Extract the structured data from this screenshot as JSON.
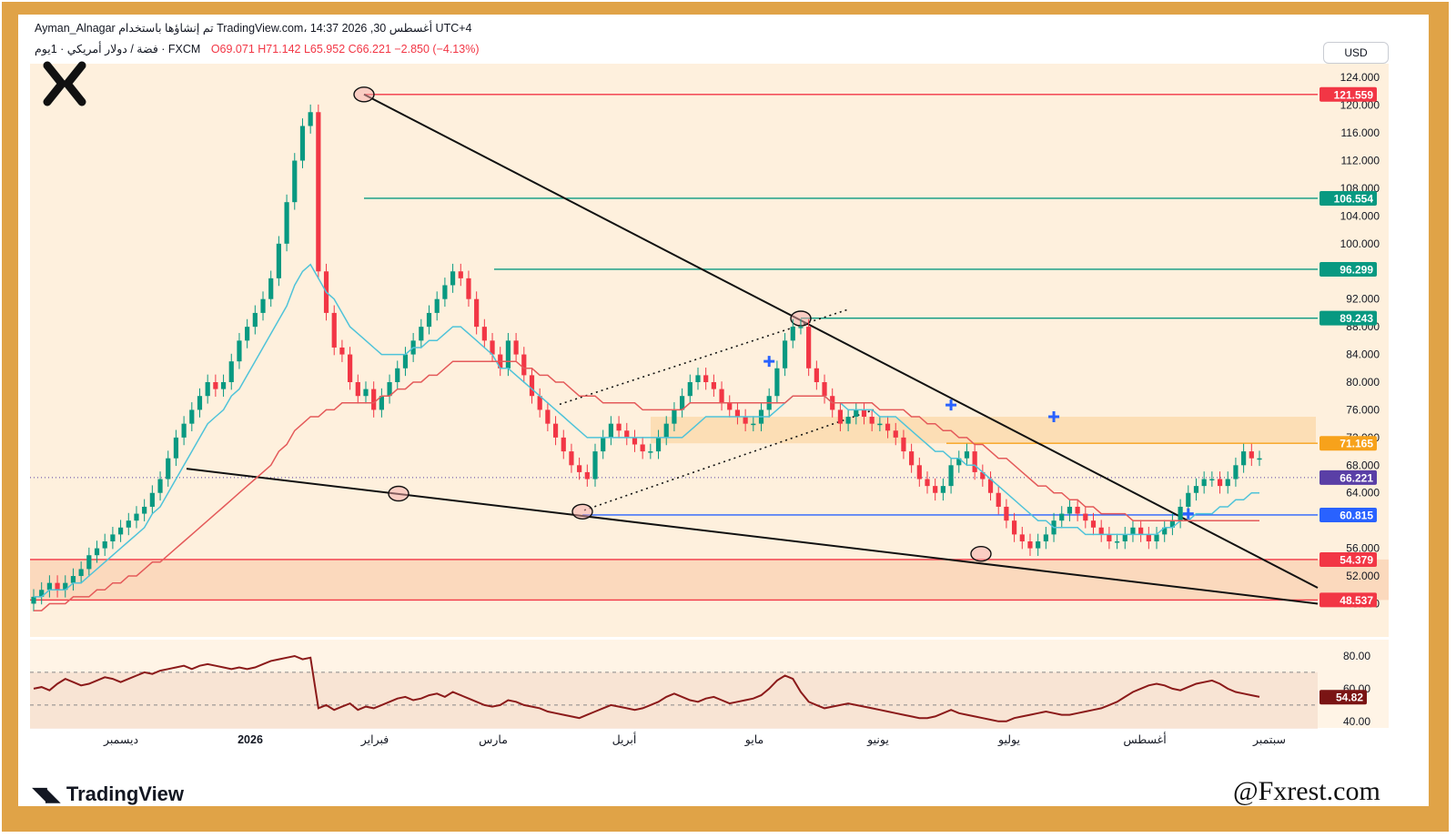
{
  "header": {
    "line1": "Ayman_Alnagar تم إنشاؤها باستخدام TradingView.com، 14:37 2026 ,30 أغسطس UTC+4",
    "symbol": "فضة / دولار أمريكي · 1يوم · FXCM",
    "ohlc": "O69.071  H71.142  L65.952  C66.221  −2.850 (−4.13%)"
  },
  "currency_button": "USD",
  "footer": {
    "brand": "TradingView",
    "watermark": "@Fxrest.com"
  },
  "colors": {
    "background_band": "#FDE7C7",
    "bull": "#089981",
    "bear": "#F23645",
    "ema_fast": "#4FC3D9",
    "ema_slow": "#E45A5A",
    "rsi": "#8B1A1A",
    "border": "#E0A347"
  },
  "chart_data": [
    {
      "type": "line",
      "title": "",
      "xlabel": "",
      "ylabel": "",
      "ylim": [
        43.2,
        126.0
      ],
      "x_ticks": [
        "ديسمبر",
        "2026",
        "فبراير",
        "مارس",
        "أبريل",
        "مايو",
        "يونيو",
        "يوليو",
        "أغسطس",
        "سبتمبر"
      ],
      "y_ticks": [
        "124.000",
        "120.000",
        "116.000",
        "112.000",
        "108.000",
        "104.000",
        "100.000",
        "92.000",
        "88.000",
        "84.000",
        "80.000",
        "76.000",
        "72.000",
        "68.000",
        "64.000",
        "56.000",
        "52.000",
        "48.000"
      ],
      "price_labels": [
        {
          "value": "121.559",
          "color": "#F23645"
        },
        {
          "value": "106.554",
          "color": "#089981"
        },
        {
          "value": "96.299",
          "color": "#089981"
        },
        {
          "value": "89.243",
          "color": "#089981"
        },
        {
          "value": "71.165",
          "color": "#F7A21B"
        },
        {
          "value": "66.221",
          "color": "#5A3FA6"
        },
        {
          "value": "60.815",
          "color": "#2962FF"
        },
        {
          "value": "54.379",
          "color": "#F23645"
        },
        {
          "value": "48.537",
          "color": "#F23645"
        }
      ],
      "series": [
        {
          "values": [
            49,
            50,
            51,
            50,
            51,
            52,
            53,
            55,
            56,
            57,
            58,
            59,
            60,
            61,
            62,
            64,
            66,
            69,
            72,
            74,
            76,
            78,
            80,
            79,
            80,
            83,
            86,
            88,
            90,
            92,
            95,
            100,
            106,
            112,
            117,
            119,
            96,
            90,
            85,
            84,
            80,
            78,
            79,
            76,
            78,
            80,
            82,
            84,
            86,
            88,
            90,
            92,
            94,
            96,
            95,
            92,
            88,
            86,
            84,
            82,
            86,
            84,
            81,
            78,
            76,
            74,
            72,
            70,
            68,
            67,
            66,
            70,
            72,
            74,
            73,
            72,
            71,
            70,
            70,
            72,
            74,
            76,
            78,
            80,
            81,
            80,
            79,
            77,
            76,
            75,
            74,
            74,
            76,
            78,
            82,
            86,
            88,
            88,
            82,
            80,
            78,
            76,
            74,
            75,
            76,
            75,
            74,
            74,
            73,
            72,
            70,
            68,
            66,
            65,
            64,
            65,
            68,
            69,
            70,
            67,
            66,
            64,
            62,
            60,
            58,
            57,
            56,
            57,
            58,
            60,
            61,
            62,
            61,
            60,
            59,
            58,
            57,
            57,
            58,
            59,
            58,
            57,
            58,
            59,
            60,
            62,
            64,
            65,
            66,
            66,
            65,
            66,
            68,
            70,
            69,
            69
          ]
        },
        {
          "values": [
            49,
            49,
            50,
            50,
            50,
            51,
            51,
            52,
            53,
            54,
            55,
            56,
            57,
            58,
            59,
            61,
            62,
            64,
            66,
            68,
            70,
            72,
            74,
            75,
            76,
            78,
            79,
            81,
            83,
            85,
            87,
            89,
            91,
            94,
            96,
            97,
            95,
            93,
            92,
            90,
            88,
            87,
            86,
            85,
            84,
            84,
            84,
            84,
            85,
            85,
            86,
            86,
            87,
            88,
            88,
            87,
            86,
            85,
            84,
            82,
            82,
            81,
            80,
            79,
            78,
            77,
            76,
            75,
            74,
            73,
            72,
            72,
            72,
            72,
            72,
            72,
            72,
            72,
            72,
            72,
            72,
            72,
            72,
            73,
            74,
            75,
            75,
            75,
            75,
            75,
            75,
            75,
            75,
            75,
            76,
            77,
            78,
            78,
            78,
            78,
            78,
            77,
            77,
            76,
            76,
            76,
            76,
            75,
            75,
            75,
            74,
            73,
            72,
            71,
            70,
            70,
            69,
            69,
            68,
            68,
            67,
            66,
            65,
            64,
            63,
            62,
            61,
            60,
            60,
            59,
            59,
            59,
            59,
            58,
            58,
            58,
            58,
            58,
            58,
            58,
            58,
            58,
            58,
            59,
            59,
            60,
            60,
            61,
            61,
            61,
            62,
            62,
            63,
            63,
            64,
            64
          ]
        },
        {
          "values": [
            47,
            47,
            48,
            48,
            48,
            49,
            49,
            49,
            50,
            50,
            51,
            51,
            52,
            52,
            53,
            54,
            54,
            55,
            56,
            57,
            58,
            59,
            60,
            61,
            62,
            63,
            64,
            65,
            66,
            67,
            68,
            70,
            71,
            73,
            74,
            75,
            75,
            76,
            76,
            77,
            77,
            77,
            77,
            77,
            78,
            78,
            79,
            79,
            80,
            80,
            81,
            81,
            82,
            83,
            83,
            83,
            83,
            83,
            83,
            83,
            83,
            83,
            82,
            82,
            81,
            81,
            80,
            80,
            79,
            78,
            78,
            78,
            77,
            77,
            77,
            77,
            77,
            76,
            76,
            76,
            76,
            76,
            76,
            77,
            77,
            77,
            77,
            77,
            77,
            77,
            77,
            77,
            77,
            77,
            77,
            77,
            78,
            78,
            78,
            78,
            78,
            77,
            77,
            77,
            77,
            77,
            77,
            76,
            76,
            76,
            76,
            75,
            75,
            74,
            74,
            73,
            73,
            72,
            72,
            71,
            71,
            70,
            69,
            69,
            68,
            67,
            66,
            65,
            65,
            64,
            64,
            63,
            63,
            62,
            62,
            61,
            61,
            61,
            61,
            60,
            60,
            60,
            60,
            60,
            60,
            60,
            60,
            60,
            60,
            60,
            60,
            60,
            60,
            60,
            60,
            60
          ]
        }
      ],
      "markers": [
        {
          "x": 93,
          "y": 83
        },
        {
          "x": 116,
          "y": 76.7
        },
        {
          "x": 129,
          "y": 75
        },
        {
          "x": 146,
          "y": 61
        }
      ],
      "rsi": {
        "ylim": [
          36,
          90
        ],
        "y_ticks": [
          "80.00",
          "60.00",
          "40.00"
        ],
        "last_label": "54.82",
        "values": [
          60,
          61,
          59,
          63,
          66,
          64,
          62,
          63,
          65,
          67,
          66,
          64,
          66,
          68,
          70,
          69,
          71,
          72,
          73,
          74,
          72,
          74,
          75,
          74,
          73,
          72,
          73,
          72,
          73,
          75,
          77,
          78,
          79,
          80,
          78,
          79,
          48,
          50,
          47,
          49,
          51,
          47,
          49,
          48,
          50,
          52,
          54,
          55,
          53,
          54,
          56,
          57,
          55,
          58,
          56,
          54,
          52,
          50,
          49,
          50,
          53,
          52,
          50,
          49,
          48,
          46,
          45,
          44,
          43,
          42,
          44,
          46,
          48,
          50,
          49,
          48,
          47,
          48,
          50,
          52,
          55,
          57,
          55,
          53,
          52,
          54,
          55,
          53,
          51,
          52,
          53,
          54,
          56,
          60,
          65,
          68,
          66,
          58,
          52,
          50,
          48,
          49,
          50,
          51,
          50,
          49,
          48,
          47,
          46,
          45,
          44,
          43,
          42,
          42,
          43,
          45,
          47,
          45,
          44,
          43,
          42,
          41,
          40,
          40,
          42,
          43,
          44,
          45,
          46,
          45,
          44,
          44,
          45,
          46,
          47,
          48,
          50,
          52,
          55,
          58,
          60,
          62,
          63,
          62,
          60,
          59,
          61,
          63,
          64,
          65,
          63,
          60,
          58,
          57,
          56,
          55
        ]
      }
    }
  ]
}
